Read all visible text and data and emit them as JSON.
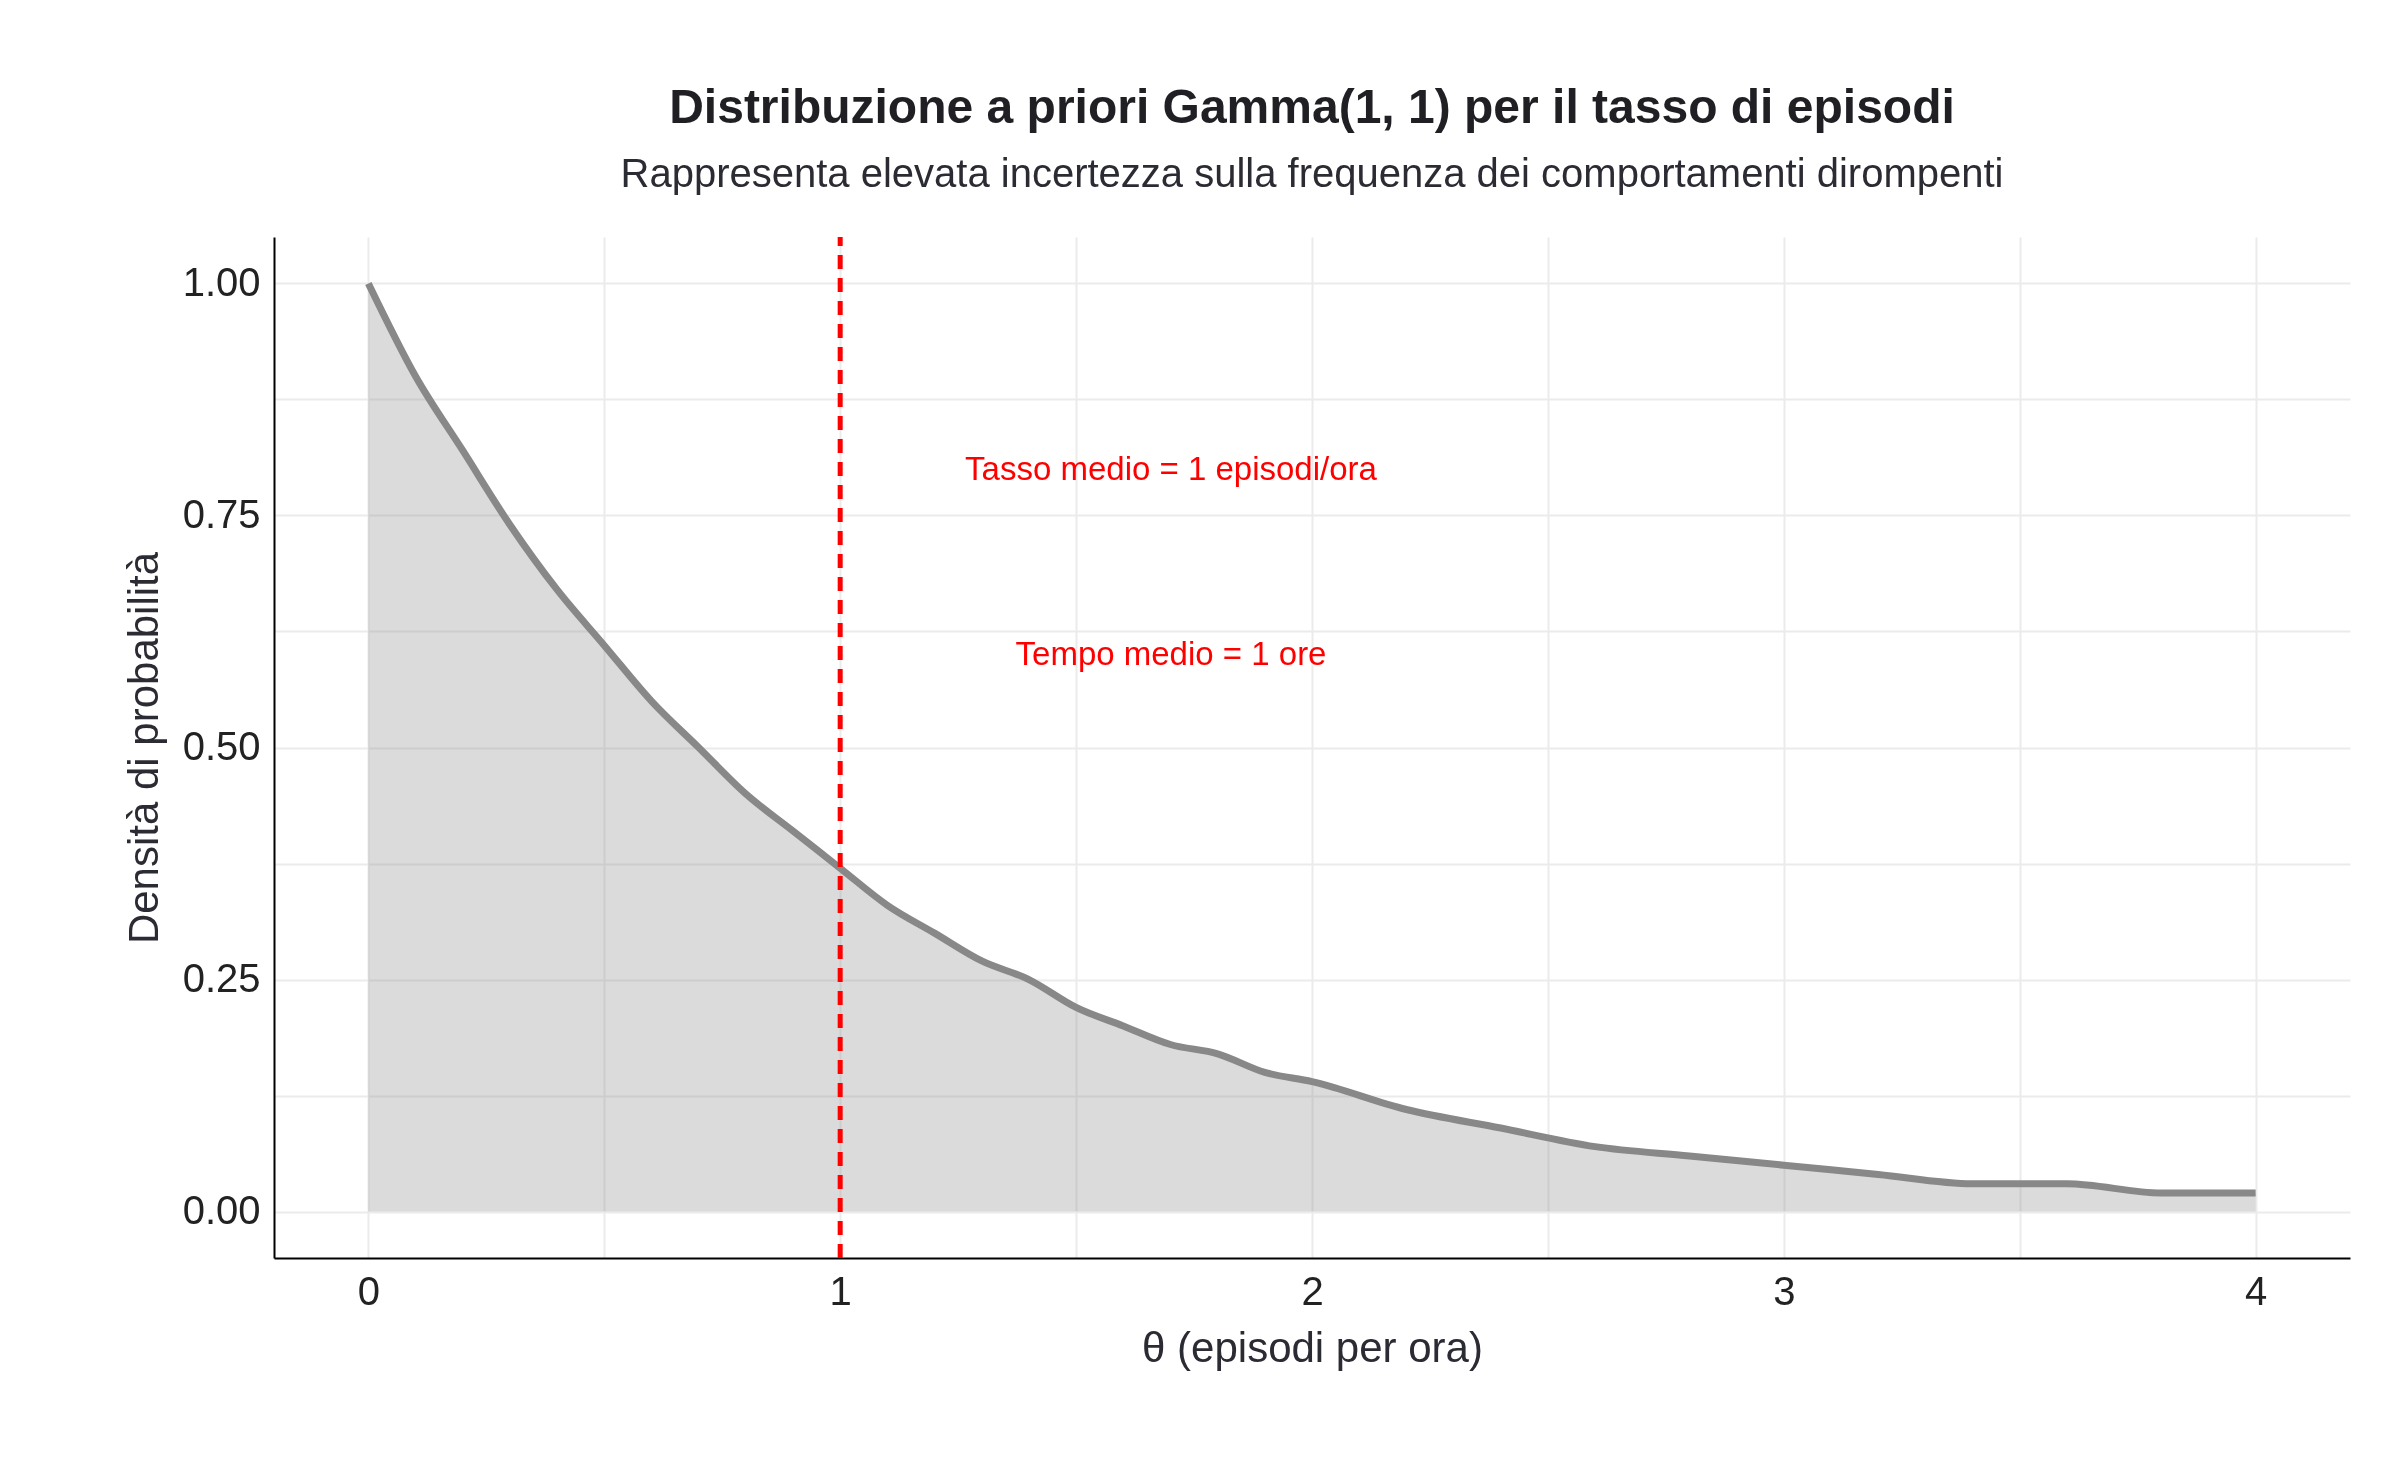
{
  "chart_data": {
    "type": "area",
    "title": "Distribuzione a priori Gamma(1, 1) per il tasso di episodi",
    "subtitle": "Rappresenta elevata incertezza sulla frequenza dei comportamenti dirompenti",
    "xlabel": "θ (episodi per ora)",
    "ylabel": "Densità di probabilità",
    "x": [
      0,
      0.1,
      0.2,
      0.3,
      0.4,
      0.5,
      0.6,
      0.7,
      0.8,
      0.9,
      1.0,
      1.1,
      1.2,
      1.3,
      1.4,
      1.5,
      1.6,
      1.7,
      1.8,
      1.9,
      2.0,
      2.2,
      2.4,
      2.6,
      2.8,
      3.0,
      3.2,
      3.4,
      3.6,
      3.8,
      4.0
    ],
    "series": [
      {
        "color": "#888888",
        "values": [
          1.0,
          0.9,
          0.82,
          0.74,
          0.67,
          0.61,
          0.55,
          0.5,
          0.45,
          0.41,
          0.37,
          0.33,
          0.3,
          0.27,
          0.25,
          0.22,
          0.2,
          0.18,
          0.17,
          0.15,
          0.14,
          0.11,
          0.09,
          0.07,
          0.06,
          0.05,
          0.04,
          0.03,
          0.03,
          0.02,
          0.02
        ]
      }
    ],
    "xlim": [
      -0.2,
      4.2
    ],
    "ylim": [
      -0.05,
      1.05
    ],
    "xticks": [
      0,
      {
        "value": 0.5,
        "label": null
      },
      1,
      {
        "value": 1.5,
        "label": null
      },
      2,
      {
        "value": 2.5,
        "label": null
      },
      3,
      {
        "value": 3.5,
        "label": null
      },
      4
    ],
    "yticks": [
      {
        "value": 0,
        "label": "0.00"
      },
      {
        "value": 0.125,
        "label": null
      },
      {
        "value": 0.25,
        "label": "0.25"
      },
      {
        "value": 0.375,
        "label": null
      },
      {
        "value": 0.5,
        "label": "0.50"
      },
      {
        "value": 0.625,
        "label": null
      },
      {
        "value": 0.75,
        "label": "0.75"
      },
      {
        "value": 0.875,
        "label": null
      },
      {
        "value": 1,
        "label": "1.00"
      }
    ],
    "ref_lines": [
      {
        "axis": "x",
        "value": 1,
        "color": "#ff0000",
        "line_style": "dashed"
      }
    ],
    "annotations": [
      "Tasso medio = 1 episodi/ora",
      "Tempo medio = 1 ore"
    ],
    "grid": true
  }
}
